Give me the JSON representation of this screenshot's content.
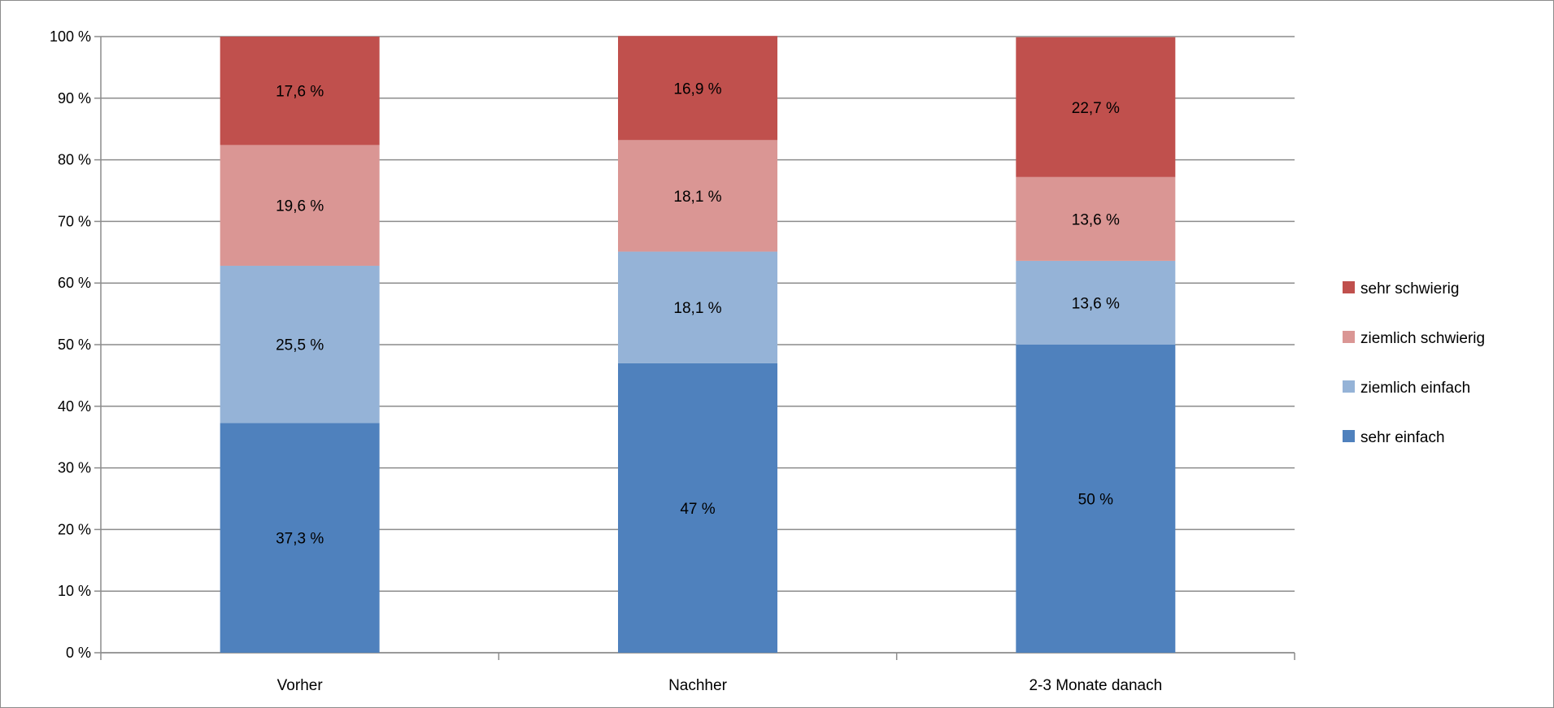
{
  "chart_data": {
    "type": "bar",
    "stacked": true,
    "title": "",
    "xlabel": "",
    "ylabel": "",
    "categories": [
      "Vorher",
      "Nachher",
      "2-3 Monate danach"
    ],
    "ylim": [
      0,
      100
    ],
    "yticks": [
      "0 %",
      "10 %",
      "20 %",
      "30 %",
      "40 %",
      "50 %",
      "60 %",
      "70 %",
      "80 %",
      "90 %",
      "100 %"
    ],
    "grid": true,
    "legend_position": "right",
    "series": [
      {
        "name": "sehr einfach",
        "color": "#4f81bd",
        "values": [
          37.3,
          47,
          50
        ],
        "labels": [
          "37,3 %",
          "47 %",
          "50 %"
        ]
      },
      {
        "name": "ziemlich einfach",
        "color": "#95b3d7",
        "values": [
          25.5,
          18.1,
          13.6
        ],
        "labels": [
          "25,5 %",
          "18,1 %",
          "13,6 %"
        ]
      },
      {
        "name": "ziemlich schwierig",
        "color": "#da9694",
        "values": [
          19.6,
          18.1,
          13.6
        ],
        "labels": [
          "19,6 %",
          "18,1 %",
          "13,6 %"
        ]
      },
      {
        "name": "sehr schwierig",
        "color": "#c0504d",
        "values": [
          17.6,
          16.9,
          22.7
        ],
        "labels": [
          "17,6 %",
          "16,9 %",
          "22,7 %"
        ]
      }
    ]
  }
}
